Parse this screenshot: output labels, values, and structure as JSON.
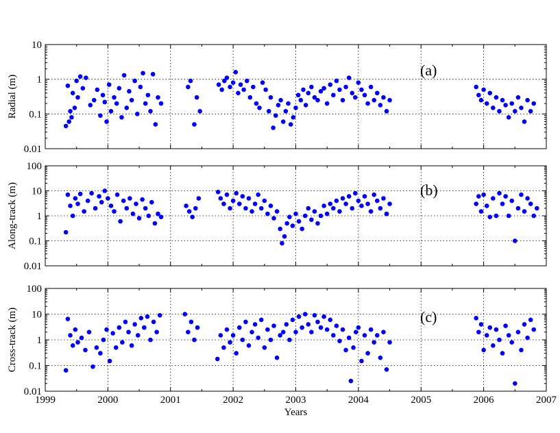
{
  "colors": {
    "marker": "#0000ff",
    "axes": "#000000",
    "background": "#ffffff"
  },
  "chart_data": [
    {
      "type": "scatter",
      "panel_label": "(a)",
      "ylabel": "Radial (m)",
      "xlabel": "",
      "xlim": [
        1999,
        2007
      ],
      "ylim": [
        0.01,
        10
      ],
      "yscale": "log",
      "grid": true,
      "x_ticks": [
        "1999",
        "2000",
        "2001",
        "2002",
        "2003",
        "2004",
        "2005",
        "2006",
        "2007"
      ],
      "y_ticks": [
        "0.01",
        "0.1",
        "1",
        "10"
      ],
      "series": [
        {
          "x": [
            1999.33,
            1999.36,
            1999.38,
            1999.4,
            1999.42,
            1999.44,
            1999.47,
            1999.5,
            1999.52,
            1999.56,
            1999.6,
            1999.65,
            1999.72,
            1999.78,
            1999.83,
            1999.88,
            1999.92,
            1999.95,
            1999.98,
            2000.02,
            2000.05,
            2000.1,
            2000.14,
            2000.18,
            2000.22,
            2000.26,
            2000.3,
            2000.34,
            2000.38,
            2000.43,
            2000.47,
            2000.52,
            2000.56,
            2000.6,
            2000.64,
            2000.68,
            2000.72,
            2000.76,
            2000.8,
            2000.85,
            2001.28,
            2001.32,
            2001.38,
            2001.42,
            2001.47,
            2001.77,
            2001.82,
            2001.86,
            2001.9,
            2001.95,
            2002.0,
            2002.04,
            2002.08,
            2002.12,
            2002.17,
            2002.22,
            2002.27,
            2002.32,
            2002.37,
            2002.42,
            2002.47,
            2002.52,
            2002.57,
            2002.6,
            2002.64,
            2002.68,
            2002.72,
            2002.76,
            2002.8,
            2002.84,
            2002.88,
            2002.92,
            2002.96,
            2003.0,
            2003.04,
            2003.08,
            2003.12,
            2003.16,
            2003.2,
            2003.25,
            2003.3,
            2003.35,
            2003.4,
            2003.45,
            2003.5,
            2003.55,
            2003.6,
            2003.65,
            2003.7,
            2003.75,
            2003.8,
            2003.85,
            2003.9,
            2003.95,
            2004.0,
            2004.05,
            2004.1,
            2004.15,
            2004.2,
            2004.25,
            2004.3,
            2004.35,
            2004.4,
            2004.45,
            2004.5,
            2005.88,
            2005.92,
            2005.96,
            2006.0,
            2006.05,
            2006.1,
            2006.15,
            2006.2,
            2006.25,
            2006.3,
            2006.35,
            2006.4,
            2006.45,
            2006.5,
            2006.55,
            2006.6,
            2006.65,
            2006.7,
            2006.75,
            2006.8
          ],
          "y": [
            0.045,
            0.65,
            0.06,
            0.12,
            0.08,
            0.4,
            0.15,
            0.9,
            0.3,
            1.2,
            0.55,
            1.1,
            0.18,
            0.25,
            0.5,
            0.09,
            0.35,
            0.22,
            0.06,
            0.7,
            0.12,
            0.3,
            0.2,
            0.55,
            0.08,
            1.3,
            0.15,
            0.45,
            0.25,
            0.9,
            0.1,
            0.6,
            1.5,
            0.2,
            0.35,
            0.12,
            1.4,
            0.05,
            0.3,
            0.2,
            0.6,
            0.9,
            0.05,
            0.3,
            0.12,
            0.7,
            0.5,
            0.9,
            1.1,
            0.6,
            0.8,
            1.6,
            0.4,
            0.7,
            0.5,
            0.9,
            0.3,
            0.6,
            0.2,
            0.15,
            0.8,
            0.5,
            0.12,
            0.3,
            0.04,
            0.09,
            0.18,
            0.25,
            0.06,
            0.12,
            0.2,
            0.05,
            0.08,
            0.15,
            0.35,
            0.25,
            0.5,
            0.18,
            0.4,
            0.6,
            0.3,
            0.25,
            0.45,
            0.55,
            0.2,
            0.7,
            0.35,
            0.9,
            0.5,
            0.25,
            0.6,
            1.1,
            0.4,
            0.3,
            0.8,
            0.5,
            0.35,
            0.2,
            0.6,
            0.25,
            0.4,
            0.18,
            0.3,
            0.12,
            0.25,
            0.6,
            0.35,
            0.25,
            0.5,
            0.2,
            0.4,
            0.15,
            0.3,
            0.12,
            0.25,
            0.18,
            0.08,
            0.2,
            0.12,
            0.3,
            0.15,
            0.06,
            0.25,
            0.12,
            0.2
          ]
        }
      ]
    },
    {
      "type": "scatter",
      "panel_label": "(b)",
      "ylabel": "Along-track (m)",
      "xlabel": "",
      "xlim": [
        1999,
        2007
      ],
      "ylim": [
        0.01,
        100
      ],
      "yscale": "log",
      "grid": true,
      "x_ticks": [
        "1999",
        "2000",
        "2001",
        "2002",
        "2003",
        "2004",
        "2005",
        "2006",
        "2007"
      ],
      "y_ticks": [
        "0.01",
        "0.1",
        "1",
        "10",
        "100"
      ],
      "series": [
        {
          "x": [
            1999.33,
            1999.36,
            1999.4,
            1999.44,
            1999.48,
            1999.52,
            1999.56,
            1999.62,
            1999.68,
            1999.74,
            1999.8,
            1999.86,
            1999.9,
            1999.95,
            2000.0,
            2000.05,
            2000.1,
            2000.15,
            2000.2,
            2000.25,
            2000.3,
            2000.35,
            2000.4,
            2000.45,
            2000.5,
            2000.55,
            2000.6,
            2000.65,
            2000.7,
            2000.75,
            2000.8,
            2000.85,
            2001.25,
            2001.3,
            2001.35,
            2001.4,
            2001.45,
            2001.76,
            2001.8,
            2001.85,
            2001.9,
            2001.95,
            2002.0,
            2002.05,
            2002.1,
            2002.15,
            2002.2,
            2002.25,
            2002.3,
            2002.35,
            2002.4,
            2002.45,
            2002.5,
            2002.55,
            2002.6,
            2002.65,
            2002.7,
            2002.75,
            2002.78,
            2002.82,
            2002.86,
            2002.9,
            2002.95,
            2003.0,
            2003.05,
            2003.1,
            2003.15,
            2003.2,
            2003.25,
            2003.3,
            2003.35,
            2003.4,
            2003.45,
            2003.5,
            2003.55,
            2003.6,
            2003.65,
            2003.7,
            2003.75,
            2003.8,
            2003.85,
            2003.9,
            2003.95,
            2004.0,
            2004.05,
            2004.1,
            2004.15,
            2004.2,
            2004.25,
            2004.3,
            2004.35,
            2004.4,
            2004.45,
            2004.5,
            2005.88,
            2005.92,
            2005.96,
            2006.0,
            2006.05,
            2006.1,
            2006.15,
            2006.2,
            2006.25,
            2006.3,
            2006.35,
            2006.4,
            2006.45,
            2006.5,
            2006.55,
            2006.6,
            2006.65,
            2006.7,
            2006.75,
            2006.8,
            2006.85
          ],
          "y": [
            0.22,
            7.0,
            2.5,
            1.0,
            5.0,
            3.0,
            7.5,
            1.5,
            4.0,
            8.0,
            2.0,
            6.0,
            3.5,
            10.0,
            5.0,
            2.5,
            1.5,
            7.0,
            0.6,
            4.0,
            2.0,
            5.0,
            1.2,
            3.0,
            0.8,
            4.5,
            2.0,
            1.0,
            3.5,
            0.5,
            1.2,
            0.9,
            2.5,
            1.5,
            0.9,
            2.0,
            5.0,
            9.0,
            5.0,
            3.0,
            7.0,
            2.0,
            4.0,
            8.0,
            3.0,
            6.0,
            2.0,
            5.0,
            1.5,
            3.0,
            7.0,
            2.0,
            4.0,
            1.2,
            2.5,
            0.8,
            1.5,
            0.3,
            0.08,
            0.15,
            0.5,
            0.9,
            0.4,
            1.2,
            0.6,
            0.3,
            1.0,
            2.0,
            0.7,
            1.5,
            0.5,
            1.0,
            2.5,
            1.2,
            3.0,
            2.0,
            4.0,
            1.5,
            5.0,
            3.0,
            6.0,
            2.0,
            8.0,
            4.0,
            2.5,
            6.0,
            3.0,
            1.5,
            7.0,
            4.0,
            2.0,
            5.0,
            1.2,
            3.0,
            3.0,
            6.0,
            1.5,
            7.0,
            2.5,
            0.9,
            5.0,
            1.0,
            8.0,
            3.0,
            6.0,
            1.0,
            4.0,
            0.1,
            2.0,
            7.0,
            1.5,
            5.0,
            3.0,
            1.0,
            2.0
          ]
        }
      ]
    },
    {
      "type": "scatter",
      "panel_label": "(c)",
      "ylabel": "Cross-track (m)",
      "xlabel": "Years",
      "xlim": [
        1999,
        2007
      ],
      "ylim": [
        0.01,
        100
      ],
      "yscale": "log",
      "grid": true,
      "x_ticks": [
        "1999",
        "2000",
        "2001",
        "2002",
        "2003",
        "2004",
        "2005",
        "2006",
        "2007"
      ],
      "y_ticks": [
        "0.01",
        "0.1",
        "1",
        "10",
        "100"
      ],
      "series": [
        {
          "x": [
            1999.33,
            1999.36,
            1999.4,
            1999.44,
            1999.48,
            1999.52,
            1999.58,
            1999.64,
            1999.7,
            1999.76,
            1999.82,
            1999.88,
            1999.93,
            1999.98,
            2000.03,
            2000.08,
            2000.13,
            2000.18,
            2000.23,
            2000.28,
            2000.33,
            2000.38,
            2000.43,
            2000.48,
            2000.53,
            2000.58,
            2000.63,
            2000.68,
            2000.73,
            2000.78,
            2000.83,
            2001.23,
            2001.28,
            2001.33,
            2001.38,
            2001.43,
            2001.75,
            2001.8,
            2001.85,
            2001.9,
            2001.95,
            2002.0,
            2002.05,
            2002.1,
            2002.15,
            2002.2,
            2002.25,
            2002.3,
            2002.35,
            2002.4,
            2002.45,
            2002.5,
            2002.55,
            2002.6,
            2002.65,
            2002.7,
            2002.75,
            2002.8,
            2002.85,
            2002.9,
            2002.95,
            2003.0,
            2003.05,
            2003.1,
            2003.15,
            2003.2,
            2003.25,
            2003.3,
            2003.35,
            2003.4,
            2003.45,
            2003.5,
            2003.55,
            2003.6,
            2003.65,
            2003.7,
            2003.75,
            2003.8,
            2003.85,
            2003.88,
            2003.92,
            2003.96,
            2004.0,
            2004.05,
            2004.1,
            2004.15,
            2004.2,
            2004.25,
            2004.3,
            2004.35,
            2004.4,
            2004.45,
            2004.5,
            2005.88,
            2005.92,
            2005.96,
            2006.0,
            2006.05,
            2006.1,
            2006.15,
            2006.2,
            2006.25,
            2006.3,
            2006.35,
            2006.4,
            2006.45,
            2006.5,
            2006.55,
            2006.6,
            2006.65,
            2006.7,
            2006.75,
            2006.8
          ],
          "y": [
            0.065,
            6.5,
            1.5,
            0.6,
            2.5,
            0.8,
            1.2,
            0.4,
            2.0,
            0.09,
            0.5,
            0.3,
            1.0,
            2.5,
            0.15,
            1.8,
            0.5,
            3.0,
            0.8,
            5.0,
            2.0,
            0.6,
            4.0,
            1.5,
            7.0,
            3.0,
            8.0,
            1.0,
            5.0,
            2.0,
            9.0,
            10.0,
            2.0,
            5.0,
            1.0,
            3.0,
            0.18,
            1.5,
            0.5,
            2.5,
            0.8,
            1.5,
            0.3,
            3.0,
            1.0,
            5.0,
            0.6,
            2.0,
            4.0,
            1.2,
            6.0,
            0.5,
            2.5,
            1.0,
            3.5,
            0.2,
            1.5,
            2.0,
            4.0,
            1.0,
            6.0,
            2.0,
            8.0,
            3.0,
            10.0,
            4.0,
            2.0,
            9.0,
            5.0,
            3.0,
            8.0,
            2.5,
            6.0,
            1.5,
            3.5,
            0.9,
            2.5,
            0.4,
            1.2,
            0.025,
            0.5,
            2.0,
            3.0,
            0.15,
            1.5,
            0.3,
            2.5,
            0.8,
            1.5,
            0.2,
            2.0,
            0.07,
            0.8,
            7.0,
            2.0,
            4.0,
            0.4,
            1.5,
            3.0,
            0.6,
            2.5,
            1.0,
            0.3,
            3.5,
            1.5,
            0.8,
            0.02,
            2.0,
            0.4,
            4.0,
            1.2,
            6.0,
            2.5
          ]
        }
      ]
    }
  ]
}
